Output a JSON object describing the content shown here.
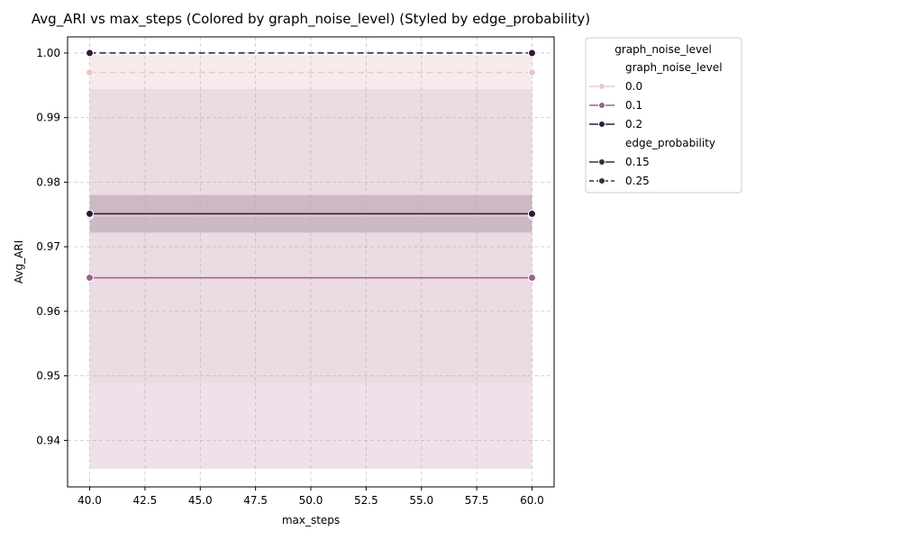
{
  "chart_data": {
    "type": "line",
    "title": "Avg_ARI vs max_steps (Colored by graph_noise_level) (Styled by edge_probability)",
    "xlabel": "max_steps",
    "ylabel": "Avg_ARI",
    "xlim": [
      39.0,
      61.0
    ],
    "ylim": [
      0.9328,
      1.0025
    ],
    "xticks": [
      40.0,
      42.5,
      45.0,
      47.5,
      50.0,
      52.5,
      55.0,
      57.5,
      60.0
    ],
    "xtick_labels": [
      "40.0",
      "42.5",
      "45.0",
      "47.5",
      "50.0",
      "52.5",
      "55.0",
      "57.5",
      "60.0"
    ],
    "yticks": [
      0.94,
      0.95,
      0.96,
      0.97,
      0.98,
      0.99,
      1.0
    ],
    "ytick_labels": [
      "0.94",
      "0.95",
      "0.96",
      "0.97",
      "0.98",
      "0.99",
      "1.00"
    ],
    "grid": true,
    "legend_placement": "outside-upper-right",
    "legend": {
      "title": "graph_noise_level",
      "hue_header": "graph_noise_level",
      "hue_entries": [
        {
          "label": "0.0",
          "color": "#ebc7c7"
        },
        {
          "label": "0.1",
          "color": "#a0608e"
        },
        {
          "label": "0.2",
          "color": "#2a1b3c"
        }
      ],
      "style_header": "edge_probability",
      "style_entries": [
        {
          "label": "0.15",
          "dash": "solid"
        },
        {
          "label": "0.25",
          "dash": "dashed"
        }
      ]
    },
    "bands": [
      {
        "color": "#eedae6",
        "x": [
          40.0,
          60.0
        ],
        "lower": 0.9356,
        "upper": 0.9488
      },
      {
        "color": "#f6e6e6",
        "x": [
          40.0,
          60.0
        ],
        "lower": 0.9944,
        "upper": 0.9997
      },
      {
        "color": "#e8d5dd",
        "x": [
          40.0,
          60.0
        ],
        "lower": 0.9488,
        "upper": 0.9944
      },
      {
        "color": "#c8b1c0",
        "x": [
          40.0,
          60.0
        ],
        "lower": 0.9722,
        "upper": 0.978
      }
    ],
    "series": [
      {
        "graph_noise_level": "0.0",
        "edge_probability": "0.25",
        "color": "#ebc7c7",
        "dash": "dashed",
        "x": [
          40.0,
          60.0
        ],
        "y": [
          0.997,
          0.997
        ]
      },
      {
        "graph_noise_level": "0.0",
        "edge_probability": "0.15",
        "color": "#ebc7c7",
        "dash": "solid",
        "x": [
          40.0,
          60.0
        ],
        "y": [
          0.9748,
          0.9748
        ]
      },
      {
        "graph_noise_level": "0.1",
        "edge_probability": "0.15",
        "color": "#a0608e",
        "dash": "solid",
        "x": [
          40.0,
          60.0
        ],
        "y": [
          0.9652,
          0.9652
        ]
      },
      {
        "graph_noise_level": "0.2",
        "edge_probability": "0.15",
        "color": "#2a1b3c",
        "dash": "solid",
        "x": [
          40.0,
          60.0
        ],
        "y": [
          0.9751,
          0.9751
        ]
      },
      {
        "graph_noise_level": "0.2",
        "edge_probability": "0.25",
        "color": "#2a1b3c",
        "dash": "dashed",
        "x": [
          40.0,
          60.0
        ],
        "y": [
          1.0,
          1.0
        ]
      }
    ]
  }
}
